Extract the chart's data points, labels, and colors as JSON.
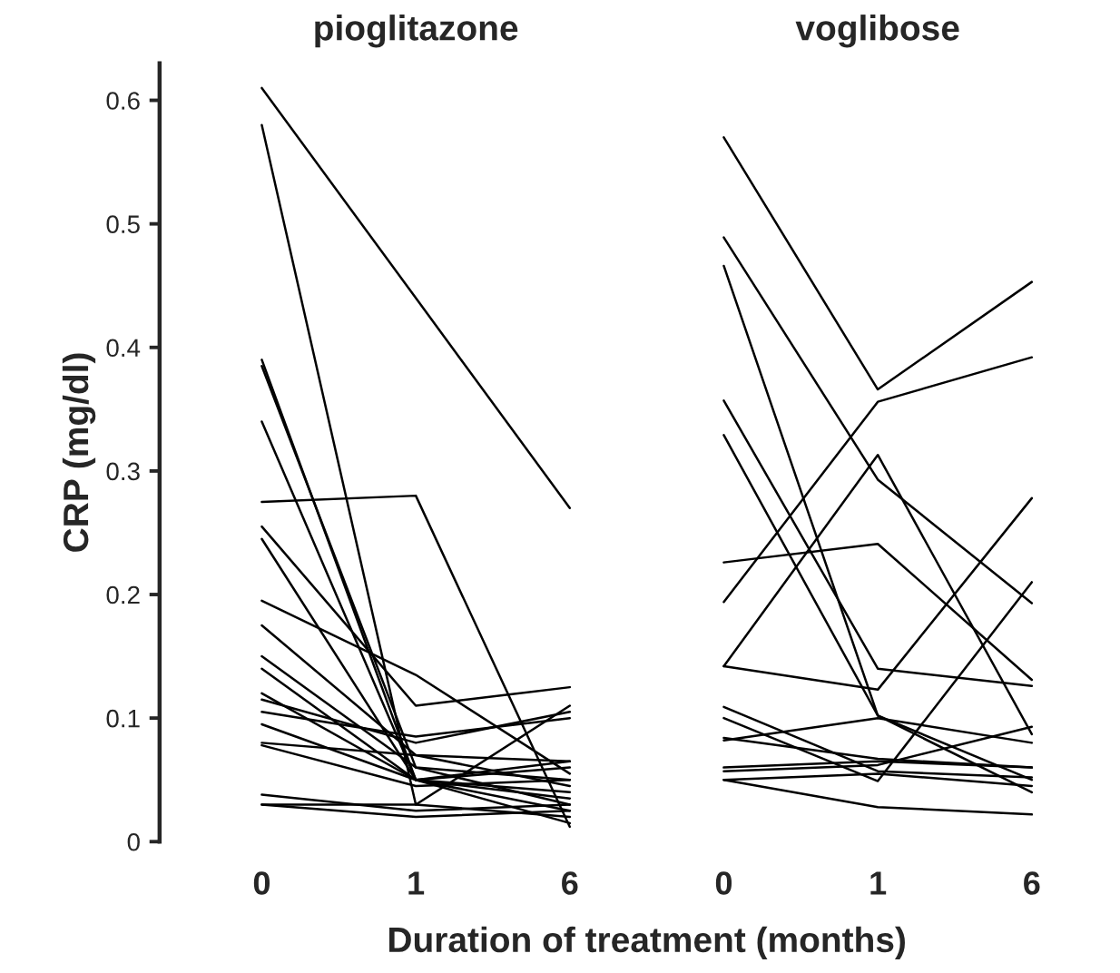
{
  "chart_data": {
    "type": "line",
    "annotations": [
      "pioglitazone",
      "voglibose"
    ],
    "xlabel": "Duration of treatment (months)",
    "ylabel": "CRP (mg/dl)",
    "categories": [
      "0",
      "1",
      "6",
      "0",
      "1",
      "6"
    ],
    "ylim": [
      0,
      0.63
    ],
    "yticks": [
      {
        "value": 0,
        "label": "0"
      },
      0.1,
      0.2,
      0.3,
      0.4,
      0.5,
      0.6
    ],
    "grid": false,
    "legend": false,
    "line_style": "solid",
    "marker": "none",
    "series": [
      {
        "color": "#000000",
        "values": [
          0.61,
          0.44,
          0.27,
          null,
          null,
          null
        ]
      },
      {
        "color": "#000000",
        "values": [
          0.58,
          0.03,
          0.11,
          null,
          null,
          null
        ]
      },
      {
        "color": "#000000",
        "values": [
          0.39,
          0.05,
          0.04,
          null,
          null,
          null
        ]
      },
      {
        "color": "#000000",
        "values": [
          0.385,
          0.06,
          0.03,
          null,
          null,
          null
        ]
      },
      {
        "color": "#000000",
        "values": [
          0.34,
          0.05,
          0.06,
          null,
          null,
          null
        ]
      },
      {
        "color": "#000000",
        "values": [
          0.275,
          0.28,
          0.012,
          null,
          null,
          null
        ]
      },
      {
        "color": "#000000",
        "values": [
          0.255,
          0.11,
          0.125,
          null,
          null,
          null
        ]
      },
      {
        "color": "#000000",
        "values": [
          0.245,
          0.05,
          0.015,
          null,
          null,
          null
        ]
      },
      {
        "color": "#000000",
        "values": [
          0.195,
          0.135,
          0.055,
          null,
          null,
          null
        ]
      },
      {
        "color": "#000000",
        "values": [
          0.175,
          0.07,
          0.045,
          null,
          null,
          null
        ]
      },
      {
        "color": "#000000",
        "values": [
          0.15,
          0.06,
          0.05,
          null,
          null,
          null
        ]
      },
      {
        "color": "#000000",
        "values": [
          0.14,
          0.05,
          0.065,
          null,
          null,
          null
        ]
      },
      {
        "color": "#000000",
        "values": [
          0.12,
          0.05,
          0.035,
          null,
          null,
          null
        ]
      },
      {
        "color": "#000000",
        "values": [
          0.115,
          0.08,
          0.105,
          null,
          null,
          null
        ]
      },
      {
        "color": "#000000",
        "values": [
          0.105,
          0.085,
          0.1,
          null,
          null,
          null
        ]
      },
      {
        "color": "#000000",
        "values": [
          0.095,
          0.05,
          0.025,
          null,
          null,
          null
        ]
      },
      {
        "color": "#000000",
        "values": [
          0.08,
          0.07,
          0.065,
          null,
          null,
          null
        ]
      },
      {
        "color": "#000000",
        "values": [
          0.078,
          0.045,
          0.05,
          null,
          null,
          null
        ]
      },
      {
        "color": "#000000",
        "values": [
          0.038,
          0.025,
          0.03,
          null,
          null,
          null
        ]
      },
      {
        "color": "#000000",
        "values": [
          0.03,
          0.02,
          0.025,
          null,
          null,
          null
        ]
      },
      {
        "color": "#000000",
        "values": [
          0.03,
          0.03,
          0.02,
          null,
          null,
          null
        ]
      },
      {
        "color": "#000000",
        "values": [
          null,
          null,
          null,
          0.57,
          0.366,
          0.453
        ]
      },
      {
        "color": "#000000",
        "values": [
          null,
          null,
          null,
          0.489,
          0.293,
          0.193
        ]
      },
      {
        "color": "#000000",
        "values": [
          null,
          null,
          null,
          0.466,
          0.102,
          0.05
        ]
      },
      {
        "color": "#000000",
        "values": [
          null,
          null,
          null,
          0.357,
          0.14,
          0.126
        ]
      },
      {
        "color": "#000000",
        "values": [
          null,
          null,
          null,
          0.329,
          0.102,
          0.04
        ]
      },
      {
        "color": "#000000",
        "values": [
          null,
          null,
          null,
          0.226,
          0.241,
          0.131
        ]
      },
      {
        "color": "#000000",
        "values": [
          null,
          null,
          null,
          0.194,
          0.356,
          0.392
        ]
      },
      {
        "color": "#000000",
        "values": [
          null,
          null,
          null,
          0.142,
          0.313,
          0.087
        ]
      },
      {
        "color": "#000000",
        "values": [
          null,
          null,
          null,
          0.142,
          0.123,
          0.278
        ]
      },
      {
        "color": "#000000",
        "values": [
          null,
          null,
          null,
          0.109,
          0.057,
          0.052
        ]
      },
      {
        "color": "#000000",
        "values": [
          null,
          null,
          null,
          0.1,
          0.049,
          0.21
        ]
      },
      {
        "color": "#000000",
        "values": [
          null,
          null,
          null,
          0.084,
          0.067,
          0.06
        ]
      },
      {
        "color": "#000000",
        "values": [
          null,
          null,
          null,
          0.082,
          0.1,
          0.08
        ]
      },
      {
        "color": "#000000",
        "values": [
          null,
          null,
          null,
          0.057,
          0.062,
          0.093
        ]
      },
      {
        "color": "#000000",
        "values": [
          null,
          null,
          null,
          0.05,
          0.028,
          0.022
        ]
      },
      {
        "color": "#000000",
        "values": [
          null,
          null,
          null,
          0.05,
          0.055,
          0.045
        ]
      },
      {
        "color": "#000000",
        "values": [
          null,
          null,
          null,
          0.06,
          0.065,
          0.06
        ]
      }
    ]
  }
}
